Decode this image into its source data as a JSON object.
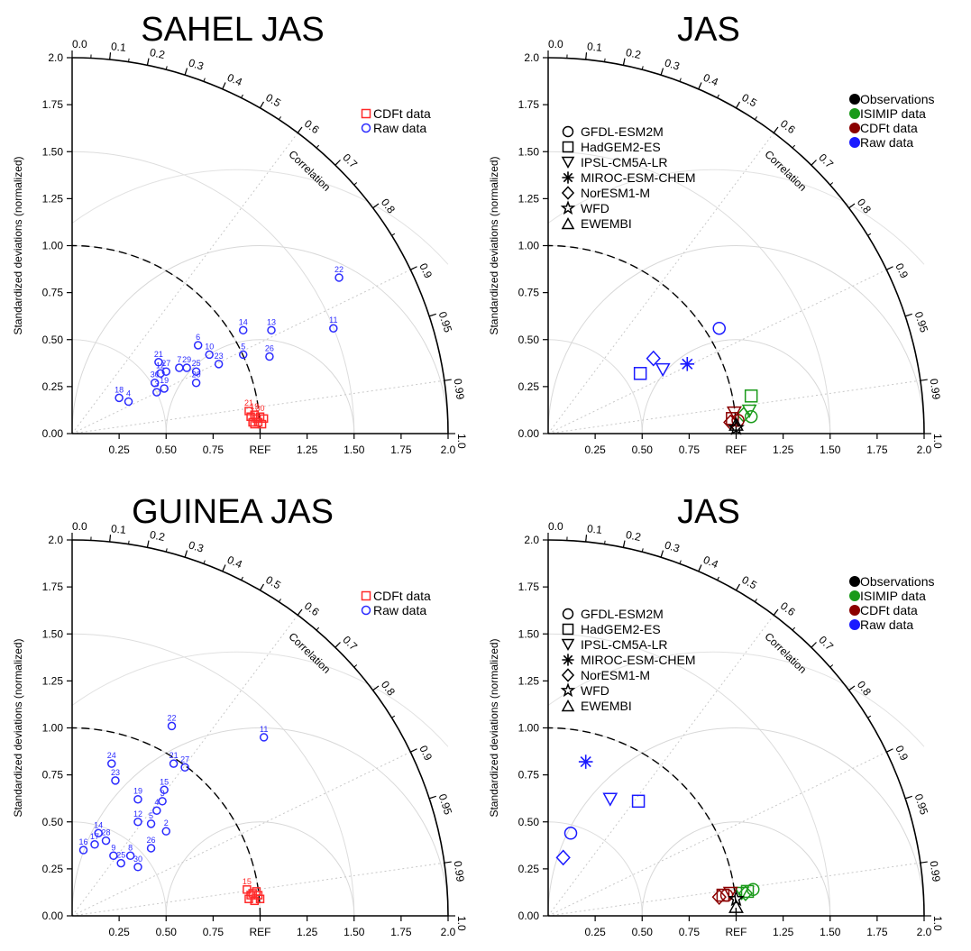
{
  "chart_data": [
    {
      "type": "scatter",
      "title": "SAHEL JAS",
      "ylabel": "Standardized deviations (normalized)",
      "arc_label": "Correlation",
      "ref_label": "REF",
      "std_ticks": [
        "0.00",
        "0.25",
        "0.50",
        "0.75",
        "1.00",
        "1.25",
        "1.50",
        "1.75",
        "2.0"
      ],
      "x_ticks": [
        "0.25",
        "0.50",
        "0.75",
        "REF",
        "1.25",
        "1.50",
        "1.75",
        "2.0"
      ],
      "corr_ticks": [
        "0.0",
        "0.1",
        "0.2",
        "0.3",
        "0.4",
        "0.5",
        "0.6",
        "0.7",
        "0.8",
        "0.9",
        "0.95",
        "0.99",
        "1.0"
      ],
      "legend": [
        {
          "label": "CDFt data",
          "color": "#ff2a2a",
          "marker": "square"
        },
        {
          "label": "Raw data",
          "color": "#2b2bff",
          "marker": "circle"
        }
      ],
      "series": [
        {
          "name": "Raw data",
          "marker": "circle",
          "color": "#2b2bff",
          "points": [
            {
              "x": 0.25,
              "y": 0.19,
              "label": "18"
            },
            {
              "x": 0.3,
              "y": 0.17,
              "label": "4"
            },
            {
              "x": 0.45,
              "y": 0.22,
              "label": "3"
            },
            {
              "x": 0.44,
              "y": 0.27,
              "label": "30"
            },
            {
              "x": 0.49,
              "y": 0.24,
              "label": "19"
            },
            {
              "x": 0.47,
              "y": 0.32,
              "label": "12"
            },
            {
              "x": 0.5,
              "y": 0.33,
              "label": "27"
            },
            {
              "x": 0.46,
              "y": 0.38,
              "label": "21"
            },
            {
              "x": 0.57,
              "y": 0.35,
              "label": "7"
            },
            {
              "x": 0.61,
              "y": 0.35,
              "label": "29"
            },
            {
              "x": 0.66,
              "y": 0.27,
              "label": "20"
            },
            {
              "x": 0.66,
              "y": 0.33,
              "label": "25"
            },
            {
              "x": 0.67,
              "y": 0.47,
              "label": "6"
            },
            {
              "x": 0.73,
              "y": 0.42,
              "label": "10"
            },
            {
              "x": 0.78,
              "y": 0.37,
              "label": "23"
            },
            {
              "x": 0.91,
              "y": 0.42,
              "label": "5"
            },
            {
              "x": 0.91,
              "y": 0.55,
              "label": "14"
            },
            {
              "x": 1.06,
              "y": 0.55,
              "label": "13"
            },
            {
              "x": 1.05,
              "y": 0.41,
              "label": "26"
            },
            {
              "x": 1.39,
              "y": 0.56,
              "label": "11"
            },
            {
              "x": 1.42,
              "y": 0.83,
              "label": "22"
            }
          ]
        },
        {
          "name": "CDFt data",
          "marker": "square",
          "color": "#ff2a2a",
          "points": [
            {
              "x": 0.94,
              "y": 0.12,
              "label": "21"
            },
            {
              "x": 0.97,
              "y": 0.1,
              "label": "19"
            },
            {
              "x": 1.0,
              "y": 0.09,
              "label": "30"
            },
            {
              "x": 1.02,
              "y": 0.08,
              "label": ""
            },
            {
              "x": 0.96,
              "y": 0.06,
              "label": ""
            },
            {
              "x": 0.99,
              "y": 0.06,
              "label": ""
            },
            {
              "x": 0.95,
              "y": 0.09,
              "label": ""
            },
            {
              "x": 1.01,
              "y": 0.05,
              "label": ""
            },
            {
              "x": 0.98,
              "y": 0.08,
              "label": ""
            },
            {
              "x": 0.97,
              "y": 0.05,
              "label": ""
            }
          ]
        }
      ]
    },
    {
      "type": "scatter",
      "title": "JAS",
      "ylabel": "Standardized deviations (normalized)",
      "arc_label": "Correlation",
      "ref_label": "REF",
      "std_ticks": [
        "0.00",
        "0.25",
        "0.50",
        "0.75",
        "1.00",
        "1.25",
        "1.50",
        "1.75",
        "2.0"
      ],
      "x_ticks": [
        "0.25",
        "0.50",
        "0.75",
        "REF",
        "1.25",
        "1.50",
        "1.75",
        "2.0"
      ],
      "corr_ticks": [
        "0.0",
        "0.1",
        "0.2",
        "0.3",
        "0.4",
        "0.5",
        "0.6",
        "0.7",
        "0.8",
        "0.9",
        "0.95",
        "0.99",
        "1.0"
      ],
      "color_legend": [
        {
          "label": "Observations",
          "color": "#000000"
        },
        {
          "label": "ISIMIP data",
          "color": "#1a9a1a"
        },
        {
          "label": "CDFt data",
          "color": "#8b0000"
        },
        {
          "label": "Raw data",
          "color": "#1a1aff"
        }
      ],
      "marker_legend": [
        {
          "label": "GFDL-ESM2M",
          "marker": "circle"
        },
        {
          "label": "HadGEM2-ES",
          "marker": "square"
        },
        {
          "label": "IPSL-CM5A-LR",
          "marker": "triangle-down"
        },
        {
          "label": "MIROC-ESM-CHEM",
          "marker": "asterisk"
        },
        {
          "label": "NorESM1-M",
          "marker": "diamond"
        },
        {
          "label": "WFD",
          "marker": "star"
        },
        {
          "label": "EWEMBI",
          "marker": "triangle-up"
        }
      ],
      "points": [
        {
          "x": 0.49,
          "y": 0.32,
          "marker": "square",
          "color": "#1a1aff"
        },
        {
          "x": 0.56,
          "y": 0.4,
          "marker": "diamond",
          "color": "#1a1aff"
        },
        {
          "x": 0.61,
          "y": 0.34,
          "marker": "triangle-down",
          "color": "#1a1aff"
        },
        {
          "x": 0.74,
          "y": 0.37,
          "marker": "asterisk",
          "color": "#1a1aff"
        },
        {
          "x": 0.91,
          "y": 0.56,
          "marker": "circle",
          "color": "#1a1aff"
        },
        {
          "x": 1.08,
          "y": 0.2,
          "marker": "square",
          "color": "#1a9a1a"
        },
        {
          "x": 1.07,
          "y": 0.12,
          "marker": "triangle-down",
          "color": "#1a9a1a"
        },
        {
          "x": 1.08,
          "y": 0.09,
          "marker": "circle",
          "color": "#1a9a1a"
        },
        {
          "x": 1.04,
          "y": 0.1,
          "marker": "diamond",
          "color": "#1a9a1a"
        },
        {
          "x": 0.99,
          "y": 0.11,
          "marker": "triangle-down",
          "color": "#8b0000"
        },
        {
          "x": 0.98,
          "y": 0.08,
          "marker": "square",
          "color": "#8b0000"
        },
        {
          "x": 0.97,
          "y": 0.06,
          "marker": "diamond",
          "color": "#8b0000"
        },
        {
          "x": 1.01,
          "y": 0.07,
          "marker": "circle",
          "color": "#8b0000"
        },
        {
          "x": 1.0,
          "y": 0.03,
          "marker": "star",
          "color": "#000000"
        },
        {
          "x": 1.0,
          "y": 0.05,
          "marker": "triangle-up",
          "color": "#000000"
        }
      ]
    },
    {
      "type": "scatter",
      "title": "GUINEA JAS",
      "ylabel": "Standardized deviations (normalized)",
      "arc_label": "Correlation",
      "ref_label": "REF",
      "std_ticks": [
        "0.00",
        "0.25",
        "0.50",
        "0.75",
        "1.00",
        "1.25",
        "1.50",
        "1.75",
        "2.0"
      ],
      "x_ticks": [
        "0.25",
        "0.50",
        "0.75",
        "REF",
        "1.25",
        "1.50",
        "1.75",
        "2.0"
      ],
      "corr_ticks": [
        "0.0",
        "0.1",
        "0.2",
        "0.3",
        "0.4",
        "0.5",
        "0.6",
        "0.7",
        "0.8",
        "0.9",
        "0.95",
        "0.99",
        "1.0"
      ],
      "legend": [
        {
          "label": "CDFt data",
          "color": "#ff2a2a",
          "marker": "square"
        },
        {
          "label": "Raw data",
          "color": "#2b2bff",
          "marker": "circle"
        }
      ],
      "series": [
        {
          "name": "Raw data",
          "marker": "circle",
          "color": "#2b2bff",
          "points": [
            {
              "x": 0.06,
              "y": 0.35,
              "label": "16"
            },
            {
              "x": 0.12,
              "y": 0.38,
              "label": "17"
            },
            {
              "x": 0.14,
              "y": 0.44,
              "label": "14"
            },
            {
              "x": 0.18,
              "y": 0.4,
              "label": "28"
            },
            {
              "x": 0.22,
              "y": 0.32,
              "label": "9"
            },
            {
              "x": 0.26,
              "y": 0.28,
              "label": "25"
            },
            {
              "x": 0.31,
              "y": 0.32,
              "label": "8"
            },
            {
              "x": 0.35,
              "y": 0.26,
              "label": "30"
            },
            {
              "x": 0.42,
              "y": 0.36,
              "label": "26"
            },
            {
              "x": 0.5,
              "y": 0.45,
              "label": "2"
            },
            {
              "x": 0.35,
              "y": 0.5,
              "label": "12"
            },
            {
              "x": 0.42,
              "y": 0.49,
              "label": "5"
            },
            {
              "x": 0.45,
              "y": 0.56,
              "label": "4"
            },
            {
              "x": 0.48,
              "y": 0.61,
              "label": "3"
            },
            {
              "x": 0.49,
              "y": 0.67,
              "label": "15"
            },
            {
              "x": 0.35,
              "y": 0.62,
              "label": "19"
            },
            {
              "x": 0.23,
              "y": 0.72,
              "label": "23"
            },
            {
              "x": 0.21,
              "y": 0.81,
              "label": "24"
            },
            {
              "x": 0.53,
              "y": 1.01,
              "label": "22"
            },
            {
              "x": 0.54,
              "y": 0.81,
              "label": "21"
            },
            {
              "x": 0.6,
              "y": 0.79,
              "label": "27"
            },
            {
              "x": 1.02,
              "y": 0.95,
              "label": "11"
            }
          ]
        },
        {
          "name": "CDFt data",
          "marker": "square",
          "color": "#ff2a2a",
          "points": [
            {
              "x": 0.93,
              "y": 0.14,
              "label": "15"
            },
            {
              "x": 0.96,
              "y": 0.12,
              "label": ""
            },
            {
              "x": 0.99,
              "y": 0.11,
              "label": ""
            },
            {
              "x": 0.94,
              "y": 0.09,
              "label": ""
            },
            {
              "x": 0.97,
              "y": 0.08,
              "label": ""
            },
            {
              "x": 1.0,
              "y": 0.09,
              "label": ""
            },
            {
              "x": 0.95,
              "y": 0.11,
              "label": ""
            },
            {
              "x": 0.98,
              "y": 0.13,
              "label": ""
            }
          ]
        }
      ]
    },
    {
      "type": "scatter",
      "title": "JAS",
      "ylabel": "Standardized deviations (normalized)",
      "arc_label": "Correlation",
      "ref_label": "REF",
      "std_ticks": [
        "0.00",
        "0.25",
        "0.50",
        "0.75",
        "1.00",
        "1.25",
        "1.50",
        "1.75",
        "2.0"
      ],
      "x_ticks": [
        "0.25",
        "0.50",
        "0.75",
        "REF",
        "1.25",
        "1.50",
        "1.75",
        "2.0"
      ],
      "corr_ticks": [
        "0.0",
        "0.1",
        "0.2",
        "0.3",
        "0.4",
        "0.5",
        "0.6",
        "0.7",
        "0.8",
        "0.9",
        "0.95",
        "0.99",
        "1.0"
      ],
      "color_legend": [
        {
          "label": "Observations",
          "color": "#000000"
        },
        {
          "label": "ISIMIP data",
          "color": "#1a9a1a"
        },
        {
          "label": "CDFt data",
          "color": "#8b0000"
        },
        {
          "label": "Raw data",
          "color": "#1a1aff"
        }
      ],
      "marker_legend": [
        {
          "label": "GFDL-ESM2M",
          "marker": "circle"
        },
        {
          "label": "HadGEM2-ES",
          "marker": "square"
        },
        {
          "label": "IPSL-CM5A-LR",
          "marker": "triangle-down"
        },
        {
          "label": "MIROC-ESM-CHEM",
          "marker": "asterisk"
        },
        {
          "label": "NorESM1-M",
          "marker": "diamond"
        },
        {
          "label": "WFD",
          "marker": "star"
        },
        {
          "label": "EWEMBI",
          "marker": "triangle-up"
        }
      ],
      "points": [
        {
          "x": 0.08,
          "y": 0.31,
          "marker": "diamond",
          "color": "#1a1aff"
        },
        {
          "x": 0.12,
          "y": 0.44,
          "marker": "circle",
          "color": "#1a1aff"
        },
        {
          "x": 0.2,
          "y": 0.82,
          "marker": "asterisk",
          "color": "#1a1aff"
        },
        {
          "x": 0.33,
          "y": 0.62,
          "marker": "triangle-down",
          "color": "#1a1aff"
        },
        {
          "x": 0.48,
          "y": 0.61,
          "marker": "square",
          "color": "#1a1aff"
        },
        {
          "x": 1.06,
          "y": 0.13,
          "marker": "square",
          "color": "#1a9a1a"
        },
        {
          "x": 1.03,
          "y": 0.12,
          "marker": "triangle-down",
          "color": "#1a9a1a"
        },
        {
          "x": 1.09,
          "y": 0.14,
          "marker": "circle",
          "color": "#1a9a1a"
        },
        {
          "x": 1.05,
          "y": 0.12,
          "marker": "diamond",
          "color": "#1a9a1a"
        },
        {
          "x": 0.93,
          "y": 0.11,
          "marker": "square",
          "color": "#8b0000"
        },
        {
          "x": 0.95,
          "y": 0.11,
          "marker": "circle",
          "color": "#8b0000"
        },
        {
          "x": 0.91,
          "y": 0.1,
          "marker": "diamond",
          "color": "#8b0000"
        },
        {
          "x": 0.97,
          "y": 0.12,
          "marker": "triangle-down",
          "color": "#8b0000"
        },
        {
          "x": 1.0,
          "y": 0.09,
          "marker": "star",
          "color": "#000000"
        },
        {
          "x": 1.0,
          "y": 0.05,
          "marker": "triangle-up",
          "color": "#000000"
        }
      ]
    }
  ]
}
